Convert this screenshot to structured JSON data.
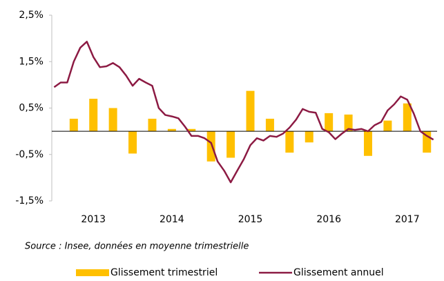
{
  "chart_data": {
    "type": "bar-line",
    "source": "Source : Insee, données en moyenne trimestrielle",
    "xlim": [
      2012.47,
      2017.38
    ],
    "xticks": [
      2013,
      2014,
      2015,
      2016,
      2017
    ],
    "ylim": [
      -1.5,
      2.5
    ],
    "yticks": [
      {
        "value": -1.5,
        "label": "-1,5%"
      },
      {
        "value": -0.5,
        "label": "-0,5%"
      },
      {
        "value": 0.5,
        "label": "0,5%"
      },
      {
        "value": 1.5,
        "label": "1,5%"
      },
      {
        "value": 2.5,
        "label": "2,5%"
      }
    ],
    "grid": false,
    "legend": "bottom",
    "series": [
      {
        "name": "Glissement trimestriel",
        "type": "bar",
        "color": "#ffc000",
        "x": [
          2012.75,
          2013,
          2013.25,
          2013.5,
          2013.75,
          2014,
          2014.25,
          2014.5,
          2014.75,
          2015,
          2015.25,
          2015.5,
          2015.75,
          2016,
          2016.25,
          2016.5,
          2016.75,
          2017,
          2017.25
        ],
        "values": [
          0.27,
          0.7,
          0.5,
          -0.48,
          0.27,
          0.05,
          0.05,
          -0.65,
          -0.57,
          0.87,
          0.27,
          -0.46,
          -0.24,
          0.39,
          0.36,
          -0.53,
          0.23,
          0.6,
          -0.46
        ]
      },
      {
        "name": "Glissement annuel",
        "type": "line",
        "color": "#8c1a43",
        "x": [
          2012.5,
          2012.583,
          2012.667,
          2012.75,
          2012.833,
          2012.917,
          2013,
          2013.083,
          2013.167,
          2013.25,
          2013.333,
          2013.417,
          2013.5,
          2013.583,
          2013.667,
          2013.75,
          2013.833,
          2013.917,
          2014,
          2014.083,
          2014.167,
          2014.25,
          2014.333,
          2014.417,
          2014.5,
          2014.583,
          2014.667,
          2014.75,
          2014.833,
          2014.917,
          2015,
          2015.083,
          2015.167,
          2015.25,
          2015.333,
          2015.417,
          2015.5,
          2015.583,
          2015.667,
          2015.75,
          2015.833,
          2015.917,
          2016,
          2016.083,
          2016.167,
          2016.25,
          2016.333,
          2016.417,
          2016.5,
          2016.583,
          2016.667,
          2016.75,
          2016.833,
          2016.917,
          2017,
          2017.083,
          2017.167,
          2017.25,
          2017.333
        ],
        "values": [
          0.95,
          1.05,
          1.05,
          1.5,
          1.8,
          1.93,
          1.6,
          1.38,
          1.4,
          1.47,
          1.38,
          1.2,
          0.98,
          1.13,
          1.05,
          0.98,
          0.5,
          0.35,
          0.32,
          0.28,
          0.1,
          -0.1,
          -0.1,
          -0.15,
          -0.25,
          -0.65,
          -0.85,
          -1.1,
          -0.85,
          -0.6,
          -0.3,
          -0.15,
          -0.2,
          -0.1,
          -0.12,
          -0.05,
          0.08,
          0.25,
          0.48,
          0.42,
          0.4,
          0.05,
          -0.02,
          -0.17,
          -0.05,
          0.05,
          0.03,
          0.05,
          0.0,
          0.13,
          0.2,
          0.45,
          0.58,
          0.75,
          0.68,
          0.38,
          0.0,
          -0.1,
          -0.18
        ]
      }
    ]
  }
}
